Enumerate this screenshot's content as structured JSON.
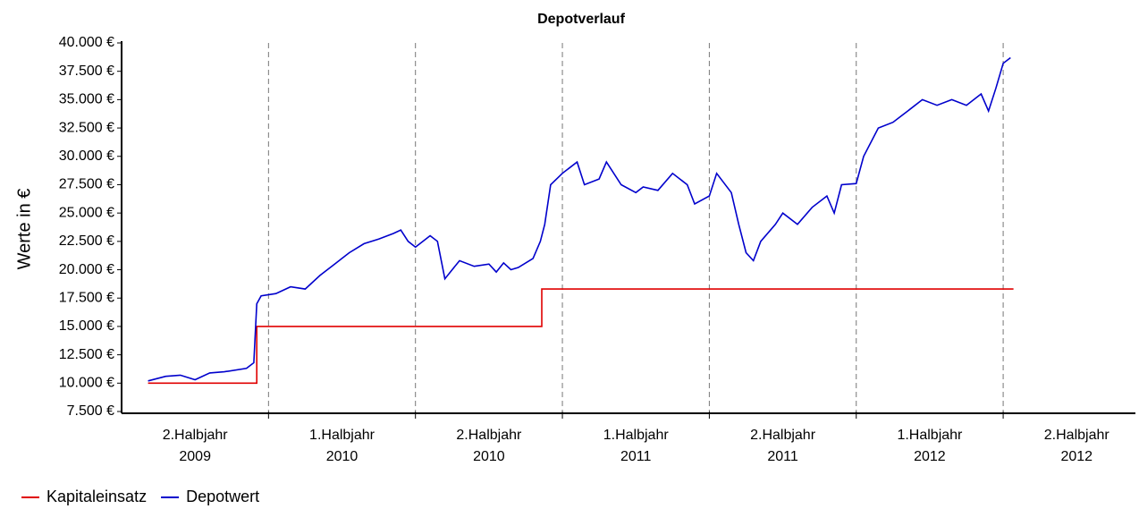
{
  "chart_data": {
    "type": "line",
    "title": "Depotverlauf",
    "y_label": "Werte in €",
    "x_labels": [
      [
        "2.Halbjahr",
        "2009"
      ],
      [
        "1.Halbjahr",
        "2010"
      ],
      [
        "2.Halbjahr",
        "2010"
      ],
      [
        "1.Halbjahr",
        "2011"
      ],
      [
        "2.Halbjahr",
        "2011"
      ],
      [
        "1.Halbjahr",
        "2012"
      ],
      [
        "2.Halbjahr",
        "2012"
      ]
    ],
    "xlim": [
      0,
      6.9
    ],
    "xticks": [
      1,
      2,
      3,
      4,
      5,
      6
    ],
    "ylim": [
      7500,
      40000
    ],
    "yticks": [
      {
        "value": 7500,
        "label": "7.500 €"
      },
      {
        "value": 10000,
        "label": "10.000 €"
      },
      {
        "value": 12500,
        "label": "12.500 €"
      },
      {
        "value": 15000,
        "label": "15.000 €"
      },
      {
        "value": 17500,
        "label": "17.500 €"
      },
      {
        "value": 20000,
        "label": "20.000 €"
      },
      {
        "value": 22500,
        "label": "22.500 €"
      },
      {
        "value": 25000,
        "label": "25.000 €"
      },
      {
        "value": 27500,
        "label": "27.500 €"
      },
      {
        "value": 30000,
        "label": "30.000 €"
      },
      {
        "value": 32500,
        "label": "32.500 €"
      },
      {
        "value": 35000,
        "label": "35.000 €"
      },
      {
        "value": 37500,
        "label": "37.500 €"
      },
      {
        "value": 40000,
        "label": "40.000 €"
      }
    ],
    "grid": true,
    "legend": "bottom-left",
    "series": [
      {
        "name": "Kapitaleinsatz",
        "color": "#e00000",
        "x": [
          0.18,
          0.92,
          0.92,
          2.86,
          2.86,
          6.07
        ],
        "values": [
          10000,
          10000,
          15000,
          15000,
          18300,
          18300
        ]
      },
      {
        "name": "Depotwert",
        "color": "#0000cc",
        "x": [
          0.18,
          0.3,
          0.4,
          0.5,
          0.6,
          0.7,
          0.85,
          0.9,
          0.92,
          0.95,
          1.05,
          1.15,
          1.25,
          1.35,
          1.45,
          1.55,
          1.65,
          1.75,
          1.85,
          1.9,
          1.95,
          2.0,
          2.1,
          2.15,
          2.2,
          2.25,
          2.3,
          2.4,
          2.5,
          2.55,
          2.6,
          2.65,
          2.7,
          2.8,
          2.85,
          2.88,
          2.92,
          3.0,
          3.1,
          3.15,
          3.25,
          3.3,
          3.4,
          3.5,
          3.55,
          3.65,
          3.75,
          3.85,
          3.9,
          4.0,
          4.05,
          4.15,
          4.2,
          4.25,
          4.3,
          4.35,
          4.45,
          4.5,
          4.6,
          4.7,
          4.8,
          4.85,
          4.9,
          5.0,
          5.05,
          5.15,
          5.25,
          5.35,
          5.45,
          5.55,
          5.65,
          5.75,
          5.85,
          5.9,
          5.95,
          6.0,
          6.05
        ],
        "values": [
          10200,
          10600,
          10700,
          10300,
          10900,
          11000,
          11300,
          11800,
          17000,
          17700,
          17900,
          18500,
          18300,
          19500,
          20500,
          21500,
          22300,
          22700,
          23200,
          23500,
          22500,
          22000,
          23000,
          22500,
          19200,
          20000,
          20800,
          20300,
          20500,
          19800,
          20600,
          20000,
          20200,
          21000,
          22500,
          24000,
          27500,
          28500,
          29500,
          27500,
          28000,
          29500,
          27500,
          26800,
          27300,
          27000,
          28500,
          27500,
          25800,
          26500,
          28500,
          26800,
          24000,
          21500,
          20800,
          22500,
          24000,
          25000,
          24000,
          25500,
          26500,
          25000,
          27500,
          27600,
          30000,
          32500,
          33000,
          34000,
          35000,
          34500,
          35000,
          34500,
          35500,
          34000,
          36000,
          38200,
          38700
        ]
      }
    ]
  }
}
